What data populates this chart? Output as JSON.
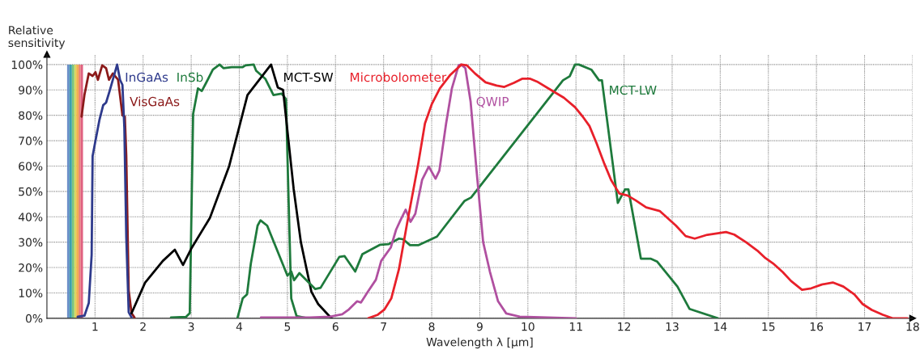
{
  "chart_data": {
    "type": "line",
    "xlabel": "Wavelength λ [μm]",
    "ylabel": "Relative sensitivity",
    "xlim": [
      0,
      18
    ],
    "ylim": [
      0,
      104
    ],
    "xticks": [
      1,
      2,
      3,
      4,
      5,
      6,
      7,
      8,
      9,
      10,
      11,
      12,
      13,
      14,
      15,
      16,
      17,
      18
    ],
    "yticks": [
      {
        "value": 0,
        "label": "0%"
      },
      {
        "value": 10,
        "label": "10%"
      },
      {
        "value": 20,
        "label": "20%"
      },
      {
        "value": 30,
        "label": "30%"
      },
      {
        "value": 40,
        "label": "40%"
      },
      {
        "value": 50,
        "label": "50%"
      },
      {
        "value": 60,
        "label": "60%"
      },
      {
        "value": 70,
        "label": "70%"
      },
      {
        "value": 80,
        "label": "80%"
      },
      {
        "value": 90,
        "label": "90%"
      },
      {
        "value": 100,
        "label": "100%"
      }
    ],
    "bands": [
      {
        "axis": "x",
        "from": 0.42,
        "to": 0.47,
        "color": "#6a8fc8"
      },
      {
        "axis": "x",
        "from": 0.47,
        "to": 0.52,
        "color": "#3aa0b0"
      },
      {
        "axis": "x",
        "from": 0.52,
        "to": 0.57,
        "color": "#7cc47c"
      },
      {
        "axis": "x",
        "from": 0.57,
        "to": 0.61,
        "color": "#d8d860"
      },
      {
        "axis": "x",
        "from": 0.61,
        "to": 0.66,
        "color": "#f0b050"
      },
      {
        "axis": "x",
        "from": 0.66,
        "to": 0.7,
        "color": "#e88070"
      },
      {
        "axis": "x",
        "from": 0.7,
        "to": 0.75,
        "color": "#e06080"
      }
    ],
    "grid": true,
    "marker": "none",
    "line_style": "solid",
    "series": [
      {
        "name": "VisGaAs",
        "color": "#8b1a1a",
        "x": [
          0.72,
          0.78,
          0.87,
          0.95,
          1.01,
          1.06,
          1.15,
          1.23,
          1.29,
          1.37,
          1.48,
          1.57,
          1.62,
          1.65,
          1.7,
          1.76,
          1.82
        ],
        "values": [
          79.5,
          88,
          96.5,
          95.5,
          97,
          94,
          99.7,
          98.6,
          94,
          96.5,
          94,
          80,
          79.5,
          64,
          11,
          2,
          0.3
        ]
      },
      {
        "name": "InGaAs",
        "color": "#2e3a8c",
        "x": [
          0.64,
          0.78,
          0.87,
          0.93,
          0.95,
          1.01,
          1.09,
          1.17,
          1.23,
          1.31,
          1.46,
          1.52,
          1.57,
          1.61,
          1.65,
          1.7,
          1.76
        ],
        "values": [
          0.6,
          1,
          6,
          25,
          64,
          70,
          78,
          84,
          85,
          90,
          100,
          94,
          92,
          75,
          32,
          2.4,
          0.3
        ]
      },
      {
        "name": "InSb",
        "color": "#1e7a3c",
        "x": [
          2.58,
          2.89,
          2.97,
          3.04,
          3.14,
          3.22,
          3.31,
          3.45,
          3.59,
          3.67,
          3.84,
          4.07,
          4.13,
          4.3,
          4.35,
          4.54,
          4.71,
          4.88,
          4.97,
          5.03,
          5.08,
          5.19,
          5.42,
          5.5
        ],
        "values": [
          0.3,
          0.5,
          2,
          80.5,
          90.6,
          89.6,
          92.8,
          98,
          100,
          98.6,
          99,
          99,
          99.7,
          100,
          97.6,
          94.4,
          88,
          88.5,
          86.4,
          43,
          7.8,
          0.9,
          0,
          0
        ]
      },
      {
        "name": "MCT-SW",
        "color": "#000000",
        "x": [
          1.76,
          2.04,
          2.41,
          2.66,
          2.83,
          3.0,
          3.39,
          3.79,
          4.17,
          4.66,
          4.8,
          4.91,
          5.13,
          5.28,
          5.5,
          5.64,
          5.87,
          5.92
        ],
        "values": [
          2,
          14,
          22.6,
          27,
          21,
          27.4,
          39.6,
          60,
          88,
          100,
          91,
          90,
          51,
          30,
          10.4,
          5.6,
          0.9,
          0
        ]
      },
      {
        "name": "MCT-LW",
        "color": "#1e7a3c",
        "x": [
          3.96,
          4.07,
          4.16,
          4.24,
          4.38,
          4.44,
          4.58,
          5.0,
          5.08,
          5.14,
          5.25,
          5.58,
          5.69,
          6.08,
          6.19,
          6.41,
          6.56,
          6.93,
          7.1,
          7.32,
          7.41,
          7.55,
          7.72,
          8.11,
          8.68,
          8.82,
          10.73,
          10.87,
          10.98,
          11.06,
          11.32,
          11.48,
          11.54,
          11.87,
          12.02,
          12.09,
          12.35,
          12.55,
          12.69,
          13.11,
          13.36,
          13.95
        ],
        "values": [
          0,
          7.8,
          9.4,
          21.6,
          36.5,
          38.6,
          36.5,
          16.8,
          18.4,
          15,
          17.8,
          11.5,
          12,
          24.2,
          24.5,
          18.4,
          25.3,
          29,
          29.2,
          31.4,
          31.1,
          28.8,
          28.8,
          32.2,
          46.2,
          47.6,
          93.8,
          95.4,
          100,
          100,
          98,
          93.8,
          93.8,
          45.5,
          50.8,
          50.8,
          23.5,
          23.5,
          22.3,
          12.5,
          3.7,
          0
        ]
      },
      {
        "name": "QWIP",
        "color": "#b050a0",
        "x": [
          4.45,
          5.08,
          5.47,
          5.89,
          6.14,
          6.28,
          6.45,
          6.53,
          6.67,
          6.84,
          6.95,
          7.15,
          7.26,
          7.35,
          7.46,
          7.56,
          7.66,
          7.8,
          7.94,
          8.08,
          8.16,
          8.3,
          8.42,
          8.56,
          8.61,
          8.7,
          8.81,
          8.93,
          9.07,
          9.21,
          9.38,
          9.55,
          9.83,
          11.0
        ],
        "values": [
          0.3,
          0.3,
          0.3,
          0.6,
          1.6,
          3.5,
          6.7,
          6.2,
          10.4,
          15.2,
          22.6,
          27.9,
          34.9,
          38.6,
          42.8,
          38,
          41.2,
          54.5,
          59.8,
          55,
          58.2,
          76.8,
          90.6,
          99.7,
          100,
          98.6,
          85.3,
          58.8,
          30,
          18.4,
          6.7,
          1.9,
          0.6,
          0
        ]
      },
      {
        "name": "Microbolometer",
        "color": "#e8202a",
        "x": [
          6.68,
          6.88,
          7.02,
          7.16,
          7.32,
          7.49,
          7.72,
          7.86,
          8.0,
          8.17,
          8.39,
          8.62,
          8.73,
          8.9,
          9.12,
          9.35,
          9.51,
          9.71,
          9.88,
          10.05,
          10.19,
          10.47,
          10.75,
          10.98,
          11.14,
          11.28,
          11.43,
          11.59,
          11.73,
          11.9,
          12.07,
          12.24,
          12.46,
          12.74,
          13.08,
          13.28,
          13.47,
          13.73,
          14.12,
          14.29,
          14.54,
          14.77,
          14.94,
          15.1,
          15.3,
          15.47,
          15.7,
          15.89,
          16.11,
          16.34,
          16.56,
          16.79,
          16.96,
          17.15,
          17.38,
          17.58,
          17.89
        ],
        "values": [
          0,
          1.4,
          3.5,
          7.8,
          19.4,
          37.5,
          60.9,
          76.8,
          84.3,
          90.6,
          96,
          100,
          99.7,
          96.5,
          93,
          91.7,
          91.2,
          92.8,
          94.4,
          94.4,
          93.3,
          90.1,
          86.9,
          83.2,
          79.5,
          75.8,
          68.9,
          60.9,
          54.5,
          49.2,
          48.4,
          46.5,
          43.7,
          42.3,
          36.5,
          32.4,
          31.4,
          32.9,
          34,
          33,
          29.9,
          26.7,
          23.7,
          21.6,
          18.2,
          14.7,
          11.2,
          11.8,
          13.3,
          14.1,
          12.5,
          9.4,
          5.6,
          3.3,
          1.4,
          0,
          0
        ]
      }
    ]
  }
}
